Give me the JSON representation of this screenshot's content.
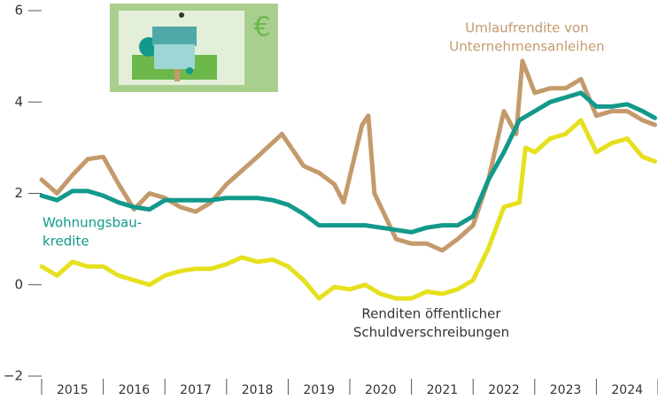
{
  "chart_data": {
    "type": "line",
    "xlim": [
      2015,
      2025
    ],
    "xticks": [
      2015,
      2016,
      2017,
      2018,
      2019,
      2020,
      2021,
      2022,
      2023,
      2024,
      2025
    ],
    "year_labels": [
      "2015",
      "2016",
      "2017",
      "2018",
      "2019",
      "2020",
      "2021",
      "2022",
      "2023",
      "2024"
    ],
    "ylim": [
      -2,
      6
    ],
    "yticks": [
      {
        "value": -2,
        "label": "−2"
      },
      0,
      2,
      4,
      6
    ],
    "series": [
      {
        "name": [
          "Umlaufrendite von",
          "Unternehmensanleihen"
        ],
        "color": "#c49a6c",
        "x": [
          2015,
          2015.25,
          2015.5,
          2015.75,
          2016,
          2016.25,
          2016.5,
          2016.75,
          2017,
          2017.25,
          2017.5,
          2017.75,
          2018,
          2018.25,
          2018.5,
          2018.9,
          2019.25,
          2019.5,
          2019.75,
          2019.9,
          2020.2,
          2020.3,
          2020.4,
          2020.75,
          2021,
          2021.25,
          2021.5,
          2021.75,
          2022,
          2022.25,
          2022.5,
          2022.7,
          2022.8,
          2023,
          2023.25,
          2023.5,
          2023.75,
          2024,
          2024.25,
          2024.5,
          2024.75,
          2024.95
        ],
        "values": [
          2.3,
          2.0,
          2.4,
          2.75,
          2.8,
          2.2,
          1.65,
          2.0,
          1.9,
          1.7,
          1.6,
          1.8,
          2.2,
          2.5,
          2.8,
          3.3,
          2.6,
          2.45,
          2.2,
          1.8,
          3.5,
          3.7,
          2.0,
          1.0,
          0.9,
          0.9,
          0.75,
          1.0,
          1.3,
          2.3,
          3.8,
          3.3,
          4.9,
          4.2,
          4.3,
          4.3,
          4.5,
          3.7,
          3.8,
          3.8,
          3.6,
          3.5
        ]
      },
      {
        "name": [
          "Wohnungsbau-",
          "kredite"
        ],
        "color": "#12998a",
        "x": [
          2015,
          2015.25,
          2015.5,
          2015.75,
          2016,
          2016.25,
          2016.5,
          2016.75,
          2017,
          2017.25,
          2017.5,
          2017.75,
          2018,
          2018.25,
          2018.5,
          2018.75,
          2019,
          2019.25,
          2019.5,
          2019.75,
          2020,
          2020.25,
          2020.5,
          2020.75,
          2021,
          2021.25,
          2021.5,
          2021.75,
          2022,
          2022.25,
          2022.5,
          2022.75,
          2023,
          2023.25,
          2023.5,
          2023.75,
          2024,
          2024.25,
          2024.5,
          2024.75,
          2024.95
        ],
        "values": [
          1.95,
          1.85,
          2.05,
          2.05,
          1.95,
          1.8,
          1.7,
          1.65,
          1.85,
          1.85,
          1.85,
          1.85,
          1.9,
          1.9,
          1.9,
          1.85,
          1.75,
          1.55,
          1.3,
          1.3,
          1.3,
          1.3,
          1.25,
          1.2,
          1.15,
          1.25,
          1.3,
          1.3,
          1.5,
          2.3,
          2.9,
          3.6,
          3.8,
          4.0,
          4.1,
          4.2,
          3.9,
          3.9,
          3.95,
          3.8,
          3.65
        ]
      },
      {
        "name": [
          "Renditen öffentlicher",
          "Schuldverschreibungen"
        ],
        "color": "#e6e01e",
        "x": [
          2015,
          2015.25,
          2015.5,
          2015.75,
          2016,
          2016.25,
          2016.5,
          2016.75,
          2017,
          2017.25,
          2017.5,
          2017.75,
          2018,
          2018.25,
          2018.5,
          2018.75,
          2019,
          2019.25,
          2019.5,
          2019.75,
          2020,
          2020.25,
          2020.5,
          2020.75,
          2021,
          2021.25,
          2021.5,
          2021.75,
          2022,
          2022.25,
          2022.5,
          2022.75,
          2022.85,
          2023,
          2023.25,
          2023.5,
          2023.75,
          2024,
          2024.25,
          2024.5,
          2024.75,
          2024.95
        ],
        "values": [
          0.4,
          0.2,
          0.5,
          0.4,
          0.4,
          0.2,
          0.1,
          0.0,
          0.2,
          0.3,
          0.35,
          0.35,
          0.45,
          0.6,
          0.5,
          0.55,
          0.4,
          0.1,
          -0.3,
          -0.05,
          -0.1,
          0.0,
          -0.2,
          -0.3,
          -0.3,
          -0.15,
          -0.2,
          -0.1,
          0.1,
          0.8,
          1.7,
          1.8,
          3.0,
          2.9,
          3.2,
          3.3,
          3.6,
          2.9,
          3.1,
          3.2,
          2.8,
          2.7
        ]
      }
    ]
  }
}
